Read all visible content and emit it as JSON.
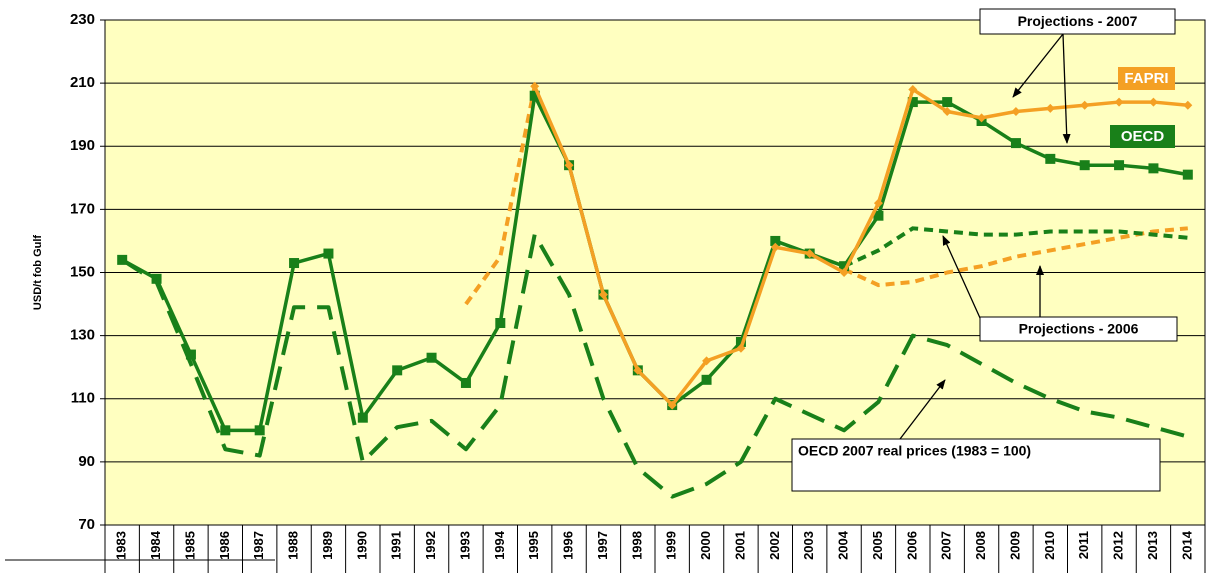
{
  "chart_data": {
    "type": "line",
    "y_label": "USD/t fob Gulf",
    "categories": [
      "1983",
      "1984",
      "1985",
      "1986",
      "1987",
      "1988",
      "1989",
      "1990",
      "1991",
      "1992",
      "1993",
      "1994",
      "1995",
      "1996",
      "1997",
      "1998",
      "1999",
      "2000",
      "2001",
      "2002",
      "2003",
      "2004",
      "2005",
      "2006",
      "2007",
      "2008",
      "2009",
      "2010",
      "2011",
      "2012",
      "2013",
      "2014"
    ],
    "ylim": [
      70,
      230
    ],
    "yticks": [
      70,
      90,
      110,
      130,
      150,
      170,
      190,
      210,
      230
    ],
    "grid": true,
    "background": "#ffffc0",
    "series": [
      {
        "color": "#f4a024",
        "style": "dotted",
        "marker": "none",
        "values": [
          null,
          null,
          null,
          null,
          null,
          null,
          null,
          null,
          null,
          null,
          140,
          155,
          209,
          null,
          null,
          null,
          null,
          null,
          null,
          null,
          null,
          151,
          146,
          147,
          150,
          152,
          155,
          157,
          159,
          161,
          163,
          164
        ]
      },
      {
        "color": "#198019",
        "style": "dotted",
        "marker": "none",
        "values": [
          null,
          null,
          null,
          null,
          null,
          null,
          null,
          null,
          null,
          null,
          null,
          null,
          null,
          null,
          null,
          null,
          null,
          null,
          null,
          null,
          null,
          152,
          157,
          164,
          163,
          162,
          162,
          163,
          163,
          163,
          162,
          161
        ]
      },
      {
        "color": "#198019",
        "style": "dashed",
        "marker": "none",
        "values": [
          154,
          147,
          121,
          94,
          92,
          139,
          139,
          90,
          101,
          103,
          94,
          108,
          162,
          143,
          110,
          88,
          79,
          83,
          90,
          110,
          105,
          100,
          109,
          130,
          127,
          121,
          115,
          110,
          106,
          104,
          101,
          98
        ]
      },
      {
        "name": "OECD",
        "color": "#198019",
        "style": "solid",
        "marker": "square",
        "values": [
          154,
          148,
          124,
          100,
          100,
          153,
          156,
          104,
          119,
          123,
          115,
          134,
          206,
          184,
          143,
          119,
          108,
          116,
          128,
          160,
          156,
          152,
          168,
          204,
          204,
          198,
          191,
          186,
          184,
          184,
          183,
          181
        ]
      },
      {
        "name": "FAPRI",
        "color": "#f4a024",
        "style": "solid",
        "marker": "diamond",
        "values": [
          null,
          null,
          null,
          null,
          null,
          null,
          null,
          null,
          null,
          null,
          null,
          null,
          209,
          184,
          143,
          119,
          108,
          122,
          126,
          158,
          156,
          150,
          172,
          208,
          201,
          199,
          201,
          202,
          203,
          204,
          204,
          203
        ]
      }
    ],
    "annotations": [
      "Projections - 2007",
      "Projections - 2006",
      "OECD 2007 real prices (1983 = 100)"
    ]
  }
}
